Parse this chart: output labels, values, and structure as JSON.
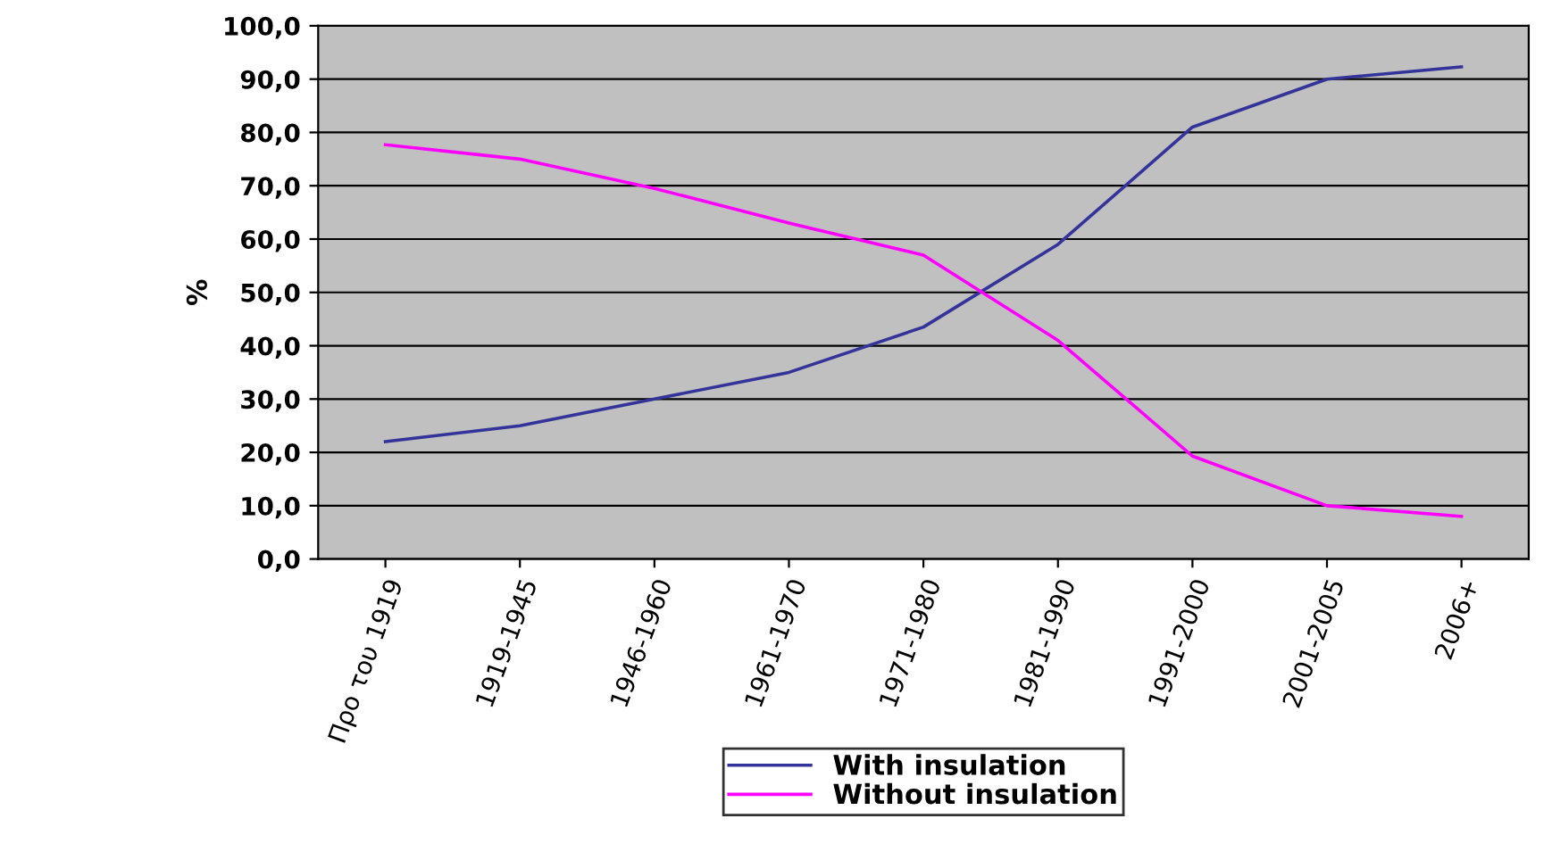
{
  "chart_data": {
    "type": "line",
    "ylabel": "%",
    "categories": [
      "Προ του 1919",
      "1919-1945",
      "1946-1960",
      "1961-1970",
      "1971-1980",
      "1981-1990",
      "1991-2000",
      "2001-2005",
      "2006+"
    ],
    "series": [
      {
        "name": "With insulation",
        "color": "#333399",
        "values": [
          22,
          25,
          30,
          35,
          43.5,
          59,
          81,
          90,
          92.3
        ]
      },
      {
        "name": "Without insulation",
        "color": "#ff00ff",
        "values": [
          77.7,
          75,
          69.5,
          63,
          57,
          41,
          19.3,
          10,
          8
        ]
      }
    ],
    "ylim": [
      0,
      100
    ],
    "yticks": [
      {
        "value": 0,
        "label": "0,0"
      },
      {
        "value": 10,
        "label": "10,0"
      },
      {
        "value": 20,
        "label": "20,0"
      },
      {
        "value": 30,
        "label": "30,0"
      },
      {
        "value": 40,
        "label": "40,0"
      },
      {
        "value": 50,
        "label": "50,0"
      },
      {
        "value": 60,
        "label": "60,0"
      },
      {
        "value": 70,
        "label": "70,0"
      },
      {
        "value": 80,
        "label": "80,0"
      },
      {
        "value": 90,
        "label": "90,0"
      },
      {
        "value": 100,
        "label": "100,0"
      }
    ],
    "grid": "y",
    "legend": "bottom",
    "marker": "none",
    "line_style": "solid"
  }
}
